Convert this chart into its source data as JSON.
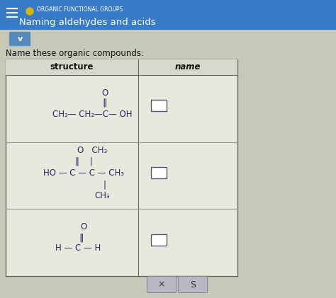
{
  "header_bg": "#3a7bc8",
  "header_text": "ORGANIC FUNCTIONAL GROUPS",
  "header_subtext": "Naming aldehydes and acids",
  "header_dot_color": "#d4b800",
  "page_bg": "#c8c8b8",
  "instruction": "Name these organic compounds:",
  "col1_header": "structure",
  "col2_header": "name",
  "table_bg": "#e8e8dc",
  "table_border": "#666666",
  "row_line_color": "#999999",
  "structure_color": "#2a2a6a",
  "text_color": "#111111",
  "chevron_bg": "#5588bb",
  "button_bg": "#b8b8c4",
  "button_border": "#888899",
  "button_labels": [
    "×",
    "S"
  ]
}
